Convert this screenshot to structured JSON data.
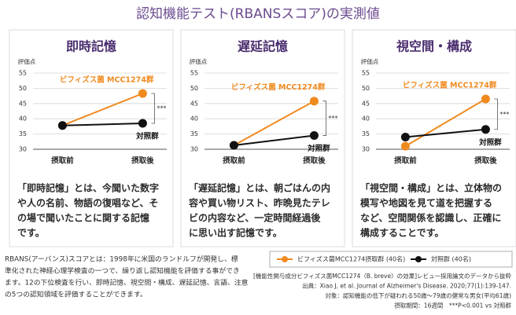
{
  "title": "認知機能テスト(RBANSスコア)の実測値",
  "chart_data": [
    {
      "type": "line",
      "title": "即時記憶",
      "y_label": "評価点",
      "categories": [
        "摂取前",
        "摂取後"
      ],
      "series": [
        {
          "name": "ビフィズス菌 MCC1274群",
          "color": "#f08a1f",
          "values": [
            37.8,
            48.3
          ]
        },
        {
          "name": "対照群",
          "color": "#111111",
          "values": [
            37.8,
            38.5
          ]
        }
      ],
      "ylim": [
        30,
        55
      ],
      "yticks": [
        30,
        35,
        40,
        45,
        50,
        55
      ],
      "grid": true,
      "significance": "***",
      "description": [
        "「即時記憶」とは、今聞いた数字",
        "や人の名前、物語の復唱など、そ",
        "の場で聞いたことに関する記憶",
        "です。"
      ]
    },
    {
      "type": "line",
      "title": "遅延記憶",
      "y_label": "評価点",
      "categories": [
        "摂取前",
        "摂取後"
      ],
      "series": [
        {
          "name": "ビフィズス菌 MCC1274群",
          "color": "#f08a1f",
          "values": [
            31.3,
            45.8
          ]
        },
        {
          "name": "対照群",
          "color": "#111111",
          "values": [
            31.3,
            34.5
          ]
        }
      ],
      "ylim": [
        30,
        55
      ],
      "yticks": [
        30,
        35,
        40,
        45,
        50,
        55
      ],
      "grid": true,
      "significance": "***",
      "description": [
        "「遅延記憶」とは、朝ごはんの内",
        "容や買い物リスト、昨晩見たテレ",
        "ビの内容など、一定時間経過後",
        "に思い出す記憶です。"
      ]
    },
    {
      "type": "line",
      "title": "視空間・構成",
      "y_label": "評価点",
      "categories": [
        "摂取前",
        "摂取後"
      ],
      "series": [
        {
          "name": "ビフィズス菌 MCC1274群",
          "color": "#f08a1f",
          "values": [
            31.0,
            46.5
          ]
        },
        {
          "name": "対照群",
          "color": "#111111",
          "values": [
            34.0,
            36.5
          ]
        }
      ],
      "ylim": [
        30,
        55
      ],
      "yticks": [
        30,
        35,
        40,
        45,
        50,
        55
      ],
      "grid": true,
      "significance": "***",
      "description": [
        "「視空間・構成」とは、立体物の",
        "模写や地図を見て道を把握する",
        "など、空間関係を認識し、正確に",
        "構成することです。"
      ]
    }
  ],
  "legend": [
    "ビフィズス菌MCC1274摂取群 (40名)",
    "対照群 (40名)"
  ],
  "note": [
    "RBANS(アーバンス)スコアとは：1998年に米国のランドルフが開発し、標",
    "準化された神経心理学検査の一つで、繰り返し認知機能を評価する事ができ",
    "ます。12の下位検査を行い、即時記憶、視空間・構成、遅延記憶、言語、注意",
    "の5つの認知領域を評価することができます。"
  ],
  "footnotes": [
    "[機能性関与成分ビフィズス菌MCC1274（B. breve）の効果]レビュー採用論文のデータから抜粋",
    "出典：Xiao J, et al. Journal of Alzheimer's Disease. 2020;77(1):139-147.",
    "対象：認知機能の低下が疑われる50歳〜79歳の健常な男女(平均61歳)",
    "摂取期間：16週間　***P<0.001 vs 対照群"
  ]
}
